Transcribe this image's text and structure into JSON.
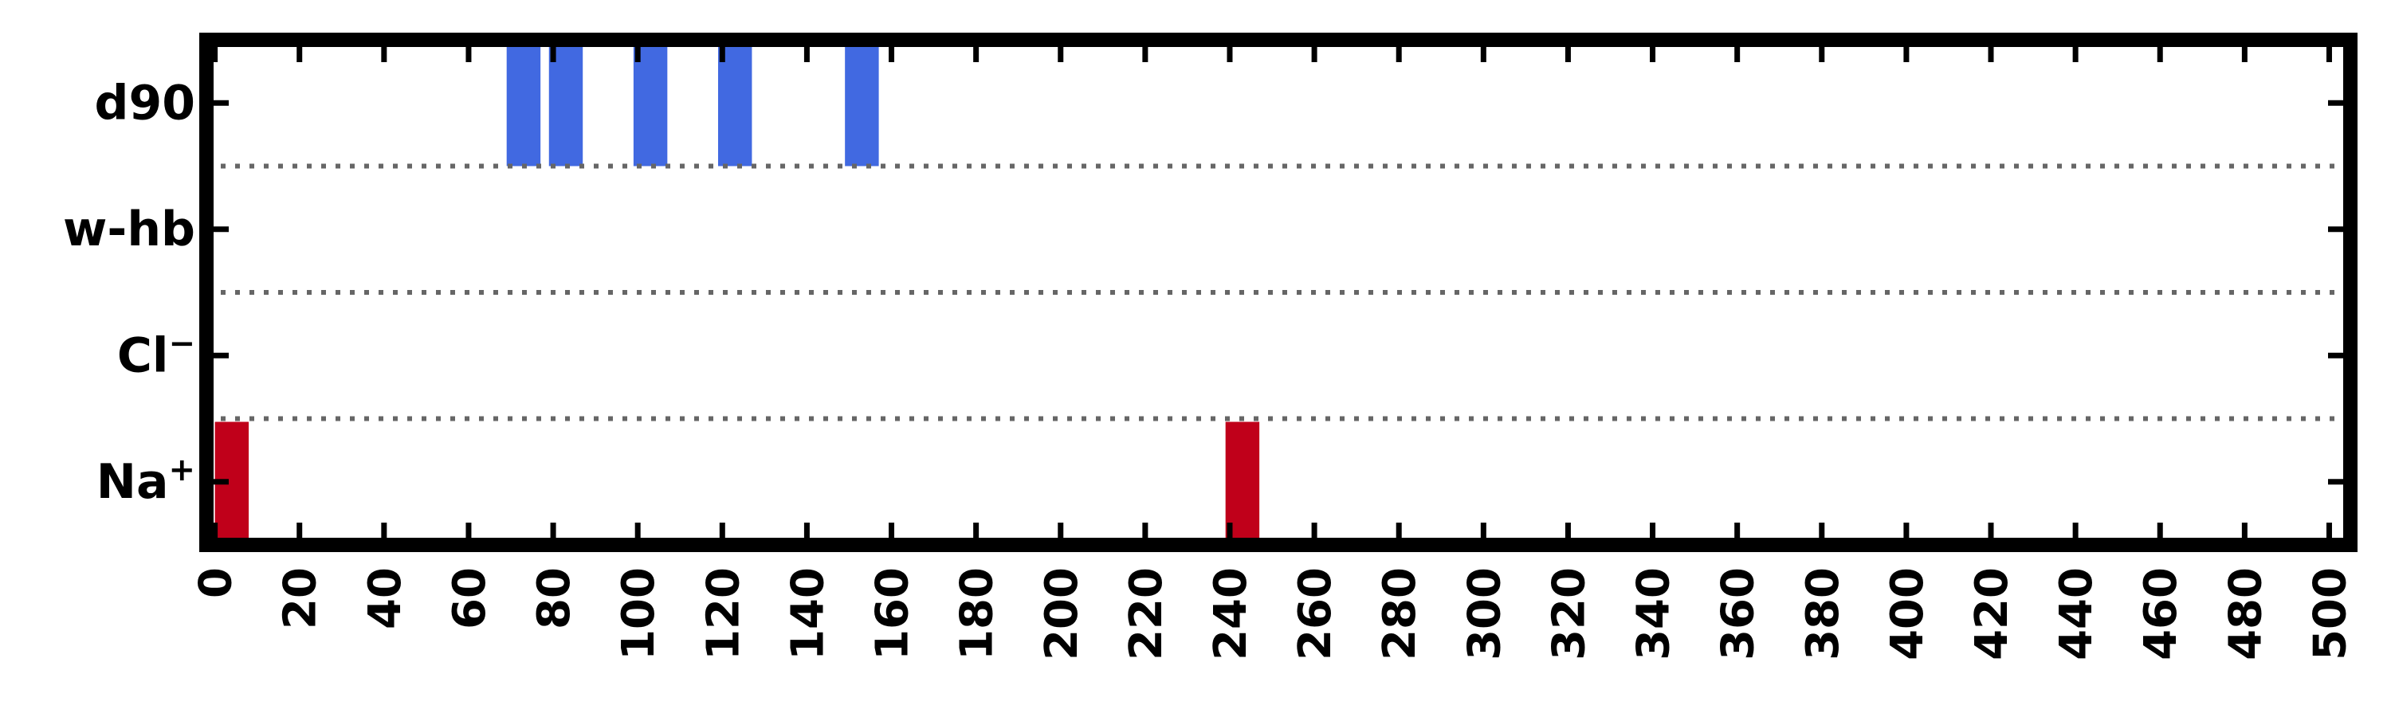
{
  "chart_data": {
    "type": "bar",
    "title": "",
    "xlabel": "",
    "ylabel": "",
    "xlim": [
      -2,
      505
    ],
    "x_ticks": [
      0,
      20,
      40,
      60,
      80,
      100,
      120,
      140,
      160,
      180,
      200,
      220,
      240,
      260,
      280,
      300,
      320,
      340,
      360,
      380,
      400,
      420,
      440,
      460,
      480,
      500
    ],
    "x_tick_labels": [
      "0",
      "20",
      "40",
      "60",
      "80",
      "100",
      "120",
      "140",
      "160",
      "180",
      "200",
      "220",
      "240",
      "260",
      "280",
      "300",
      "320",
      "340",
      "360",
      "380",
      "400",
      "420",
      "440",
      "460",
      "480",
      "500"
    ],
    "rows": [
      {
        "key": "d90",
        "label": "d90",
        "sup": ""
      },
      {
        "key": "whb",
        "label": "w-hb",
        "sup": ""
      },
      {
        "key": "cl",
        "label": "Cl",
        "sup": "−"
      },
      {
        "key": "na",
        "label": "Na",
        "sup": "+"
      }
    ],
    "bars": [
      {
        "row": "d90",
        "x0": 69,
        "x1": 77,
        "color": "#4169e1"
      },
      {
        "row": "d90",
        "x0": 79,
        "x1": 87,
        "color": "#4169e1"
      },
      {
        "row": "d90",
        "x0": 99,
        "x1": 107,
        "color": "#4169e1"
      },
      {
        "row": "d90",
        "x0": 119,
        "x1": 127,
        "color": "#4169e1"
      },
      {
        "row": "d90",
        "x0": 149,
        "x1": 157,
        "color": "#4169e1"
      },
      {
        "row": "na",
        "x0": 0,
        "x1": 8,
        "color": "#c0001a"
      },
      {
        "row": "na",
        "x0": 239,
        "x1": 247,
        "color": "#c0001a"
      }
    ],
    "separator_style": "dotted",
    "grid": false,
    "legend": "none"
  }
}
